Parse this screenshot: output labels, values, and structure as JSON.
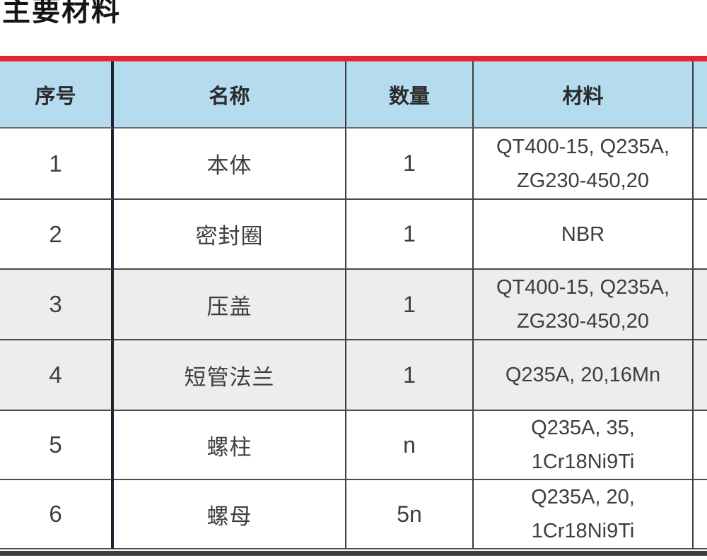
{
  "page_title": "主要材料",
  "table": {
    "headers": {
      "no": "序号",
      "name": "名称",
      "qty": "数量",
      "material": "材料"
    },
    "rows": [
      {
        "no": "1",
        "name": "本体",
        "qty": "1",
        "material": "QT400-15, Q235A,\nZG230-450,20"
      },
      {
        "no": "2",
        "name": "密封圈",
        "qty": "1",
        "material": "NBR"
      },
      {
        "no": "3",
        "name": "压盖",
        "qty": "1",
        "material": "QT400-15, Q235A,\nZG230-450,20"
      },
      {
        "no": "4",
        "name": "短管法兰",
        "qty": "1",
        "material": "Q235A, 20,16Mn"
      },
      {
        "no": "5",
        "name": "螺柱",
        "qty": "n",
        "material": "Q235A, 35,\n1Cr18Ni9Ti"
      },
      {
        "no": "6",
        "name": "螺母",
        "qty": "5n",
        "material": "Q235A, 20,\n1Cr18Ni9Ti"
      }
    ]
  },
  "colors": {
    "accent_red": "#e22530",
    "header_blue": "#b5dbee",
    "row_gray": "#ededee",
    "row_white": "#ffffff",
    "bottom_bar": "#3b3b3b"
  }
}
